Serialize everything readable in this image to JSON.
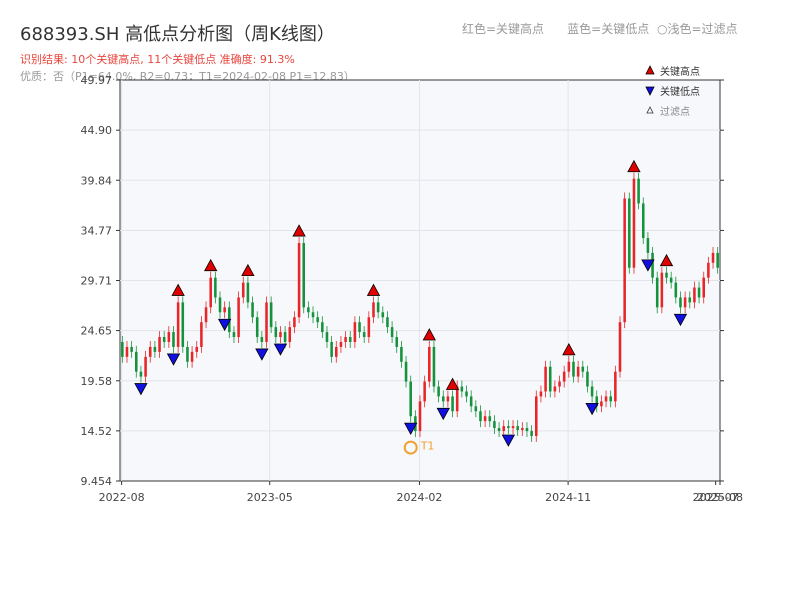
{
  "header": {
    "title": "688393.SH 高低点分析图（周K线图）",
    "legend_high": "红色=关键高点",
    "legend_low": "蓝色=关键低点",
    "legend_filtered": "○浅色=过滤点",
    "result_text": "识别结果: 10个关键高点, 11个关键低点  准确度: 91.3%",
    "quality_text": "优质：否（P1=64.0%, R2=0.73；T1=2024-02-08 P1=12.83）"
  },
  "legend_box": {
    "high": "关键高点",
    "low": "关键低点",
    "filtered": "过滤点"
  },
  "colors": {
    "up": "#e8262a",
    "down": "#14923c",
    "high_marker": "#e00000",
    "low_marker": "#1010e0",
    "t1": "#f0a030",
    "plot_bg": "#f7f8fb"
  },
  "chart_data": {
    "type": "candlestick",
    "ylim": [
      9.454,
      49.97
    ],
    "y_ticks": [
      "9.454",
      "14.52",
      "19.58",
      "24.65",
      "29.71",
      "34.77",
      "39.84",
      "44.90",
      "49.97"
    ],
    "x_range": [
      "2022-07-29",
      "2025-08-08"
    ],
    "x_ticks": [
      {
        "date": "2022-08-01",
        "label": "2022-08"
      },
      {
        "date": "2023-05-01",
        "label": "2023-05"
      },
      {
        "date": "2024-02-01",
        "label": "2024-02"
      },
      {
        "date": "2024-11-01",
        "label": "2024-11"
      },
      {
        "date": "2025-07-31",
        "label": "2025-07"
      },
      {
        "date": "2025-08-08",
        "label": "2025-08"
      }
    ],
    "points": [
      [
        23.5,
        22.0
      ],
      [
        22.0,
        23.0
      ],
      [
        23.0,
        22.5
      ],
      [
        22.5,
        20.5
      ],
      [
        20.5,
        20.0
      ],
      [
        20.0,
        22.0
      ],
      [
        22.0,
        23.0
      ],
      [
        23.0,
        22.5
      ],
      [
        22.5,
        24.0
      ],
      [
        24.0,
        23.5
      ],
      [
        23.5,
        24.5
      ],
      [
        24.5,
        23.0
      ],
      [
        23.0,
        27.5
      ],
      [
        27.5,
        23.0
      ],
      [
        23.0,
        21.5
      ],
      [
        21.5,
        22.5
      ],
      [
        22.5,
        23.0
      ],
      [
        23.0,
        25.5
      ],
      [
        25.5,
        27.0
      ],
      [
        27.0,
        30.0
      ],
      [
        30.0,
        28.0
      ],
      [
        28.0,
        26.5
      ],
      [
        26.5,
        27.0
      ],
      [
        27.0,
        24.5
      ],
      [
        24.5,
        24.0
      ],
      [
        24.0,
        28.0
      ],
      [
        28.0,
        29.5
      ],
      [
        29.5,
        27.5
      ],
      [
        27.5,
        26.0
      ],
      [
        26.0,
        24.0
      ],
      [
        24.0,
        23.5
      ],
      [
        23.5,
        27.5
      ],
      [
        27.5,
        25.0
      ],
      [
        25.0,
        24.0
      ],
      [
        24.0,
        24.5
      ],
      [
        24.5,
        23.5
      ],
      [
        23.5,
        25.0
      ],
      [
        25.0,
        26.0
      ],
      [
        26.0,
        33.5
      ],
      [
        33.5,
        27.0
      ],
      [
        27.0,
        26.5
      ],
      [
        26.5,
        26.0
      ],
      [
        26.0,
        25.5
      ],
      [
        25.5,
        24.5
      ],
      [
        24.5,
        23.5
      ],
      [
        23.5,
        22.0
      ],
      [
        22.0,
        23.0
      ],
      [
        23.0,
        23.5
      ],
      [
        23.5,
        24.0
      ],
      [
        24.0,
        23.5
      ],
      [
        23.5,
        25.5
      ],
      [
        25.5,
        24.5
      ],
      [
        24.5,
        24.0
      ],
      [
        24.0,
        26.0
      ],
      [
        26.0,
        27.5
      ],
      [
        27.5,
        26.5
      ],
      [
        26.5,
        26.0
      ],
      [
        26.0,
        25.0
      ],
      [
        25.0,
        24.0
      ],
      [
        24.0,
        23.0
      ],
      [
        23.0,
        21.5
      ],
      [
        21.5,
        19.5
      ],
      [
        19.5,
        16.0
      ],
      [
        16.0,
        14.5
      ],
      [
        14.5,
        17.5
      ],
      [
        17.5,
        19.5
      ],
      [
        19.5,
        23.0
      ],
      [
        23.0,
        19.0
      ],
      [
        19.0,
        18.0
      ],
      [
        18.0,
        17.5
      ],
      [
        17.5,
        18.0
      ],
      [
        18.0,
        16.5
      ],
      [
        16.5,
        19.0
      ],
      [
        19.0,
        18.5
      ],
      [
        18.5,
        18.0
      ],
      [
        18.0,
        17.0
      ],
      [
        17.0,
        16.5
      ],
      [
        16.5,
        15.5
      ],
      [
        15.5,
        16.0
      ],
      [
        16.0,
        15.5
      ],
      [
        15.5,
        14.8
      ],
      [
        14.8,
        14.5
      ],
      [
        14.5,
        15.0
      ],
      [
        15.0,
        14.8
      ],
      [
        14.8,
        15.0
      ],
      [
        15.0,
        14.6
      ],
      [
        14.6,
        14.8
      ],
      [
        14.8,
        14.5
      ],
      [
        14.5,
        14.0
      ],
      [
        14.0,
        18.0
      ],
      [
        18.0,
        18.5
      ],
      [
        18.5,
        21.0
      ],
      [
        21.0,
        18.5
      ],
      [
        18.5,
        19.0
      ],
      [
        19.0,
        19.5
      ],
      [
        19.5,
        20.5
      ],
      [
        20.5,
        21.5
      ],
      [
        21.5,
        20.0
      ],
      [
        20.0,
        21.0
      ],
      [
        21.0,
        20.5
      ],
      [
        20.5,
        19.0
      ],
      [
        19.0,
        18.0
      ],
      [
        18.0,
        17.0
      ],
      [
        17.0,
        17.5
      ],
      [
        17.5,
        18.0
      ],
      [
        18.0,
        17.5
      ],
      [
        17.5,
        20.5
      ],
      [
        20.5,
        25.5
      ],
      [
        25.5,
        38.0
      ],
      [
        38.0,
        31.0
      ],
      [
        31.0,
        40.0
      ],
      [
        40.0,
        37.5
      ],
      [
        37.5,
        34.0
      ],
      [
        34.0,
        32.5
      ],
      [
        32.5,
        30.0
      ],
      [
        30.0,
        27.0
      ],
      [
        27.0,
        30.5
      ],
      [
        30.5,
        30.0
      ],
      [
        30.0,
        29.5
      ],
      [
        29.5,
        28.0
      ],
      [
        28.0,
        27.0
      ],
      [
        27.0,
        28.0
      ],
      [
        28.0,
        27.5
      ],
      [
        27.5,
        29.0
      ],
      [
        29.0,
        28.0
      ],
      [
        28.0,
        30.0
      ],
      [
        30.0,
        31.5
      ],
      [
        31.5,
        32.5
      ],
      [
        32.5,
        31.0
      ]
    ],
    "key_highs": [
      {
        "week": 12,
        "label": "△"
      },
      {
        "week": 19,
        "label": "△"
      },
      {
        "week": 27,
        "label": "△"
      },
      {
        "week": 38,
        "label": "△"
      },
      {
        "week": 54,
        "label": "△"
      },
      {
        "week": 66,
        "label": "△"
      },
      {
        "week": 71,
        "label": "△"
      },
      {
        "week": 96,
        "label": "△"
      },
      {
        "week": 110,
        "label": "△"
      },
      {
        "week": 117,
        "label": "△"
      }
    ],
    "key_lows": [
      {
        "week": 4
      },
      {
        "week": 11
      },
      {
        "week": 22
      },
      {
        "week": 30
      },
      {
        "week": 34
      },
      {
        "week": 62
      },
      {
        "week": 69
      },
      {
        "week": 83
      },
      {
        "week": 101
      },
      {
        "week": 113
      },
      {
        "week": 120
      }
    ],
    "t1": {
      "week": 62,
      "label": "T1",
      "value": 12.83
    }
  }
}
